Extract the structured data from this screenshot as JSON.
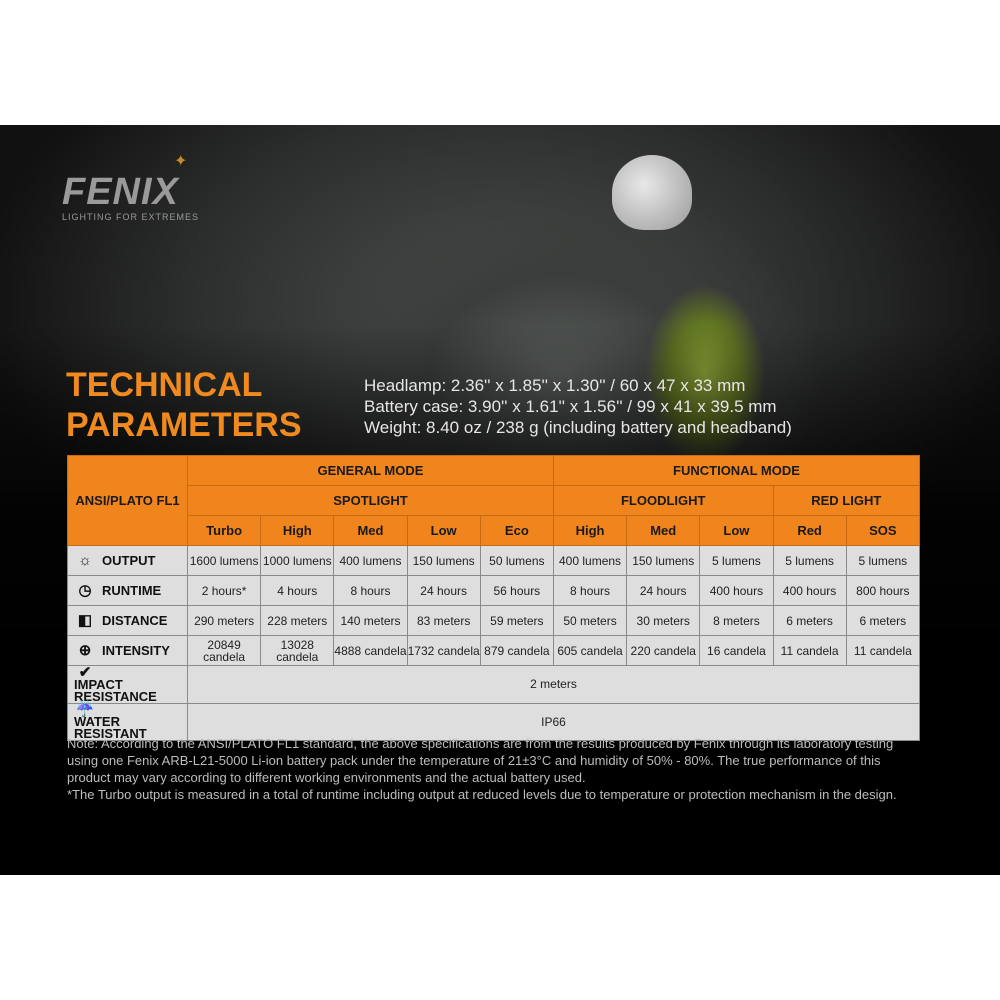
{
  "logo": {
    "brand": "FENIX",
    "tagline": "LIGHTING FOR EXTREMES"
  },
  "title": [
    "TECHNICAL",
    "PARAMETERS"
  ],
  "dimensions": [
    "Headlamp: 2.36'' x 1.85'' x 1.30'' / 60 x 47 x 33 mm",
    "Battery case: 3.90'' x 1.61'' x 1.56'' / 99 x 41 x 39.5 mm",
    "Weight: 8.40 oz / 238 g (including battery and headband)"
  ],
  "table": {
    "corner": "ANSI/PLATO FL1",
    "groups": [
      "GENERAL MODE",
      "FUNCTIONAL MODE"
    ],
    "subgroups": [
      "SPOTLIGHT",
      "FLOODLIGHT",
      "RED LIGHT"
    ],
    "modes": [
      "Turbo",
      "High",
      "Med",
      "Low",
      "Eco",
      "High",
      "Med",
      "Low",
      "Red",
      "SOS"
    ],
    "rows": [
      {
        "label": "OUTPUT",
        "icon": "output-rays-icon",
        "values": [
          "1600 lumens",
          "1000 lumens",
          "400 lumens",
          "150 lumens",
          "50 lumens",
          "400 lumens",
          "150 lumens",
          "5 lumens",
          "5 lumens",
          "5 lumens"
        ]
      },
      {
        "label": "RUNTIME",
        "icon": "clock-icon",
        "values": [
          "2 hours*",
          "4 hours",
          "8 hours",
          "24 hours",
          "56 hours",
          "8 hours",
          "24 hours",
          "400 hours",
          "400 hours",
          "800 hours"
        ]
      },
      {
        "label": "DISTANCE",
        "icon": "beam-distance-icon",
        "values": [
          "290 meters",
          "228 meters",
          "140 meters",
          "83 meters",
          "59 meters",
          "50 meters",
          "30 meters",
          "8 meters",
          "6 meters",
          "6 meters"
        ]
      },
      {
        "label": "INTENSITY",
        "icon": "target-icon",
        "values": [
          "20849 candela",
          "13028 candela",
          "4888 candela",
          "1732 candela",
          "879 candela",
          "605 candela",
          "220 candela",
          "16 candela",
          "11 candela",
          "11 candela"
        ]
      }
    ],
    "impact": {
      "label": "IMPACT RESISTANCE",
      "icon": "impact-icon",
      "value": "2 meters"
    },
    "water": {
      "label": "WATER RESISTANT",
      "icon": "water-icon",
      "value": "IP66"
    }
  },
  "note": "Note: According to the ANSI/PLATO FL1 standard, the above specifications are from the results produced by Fenix through its laboratory testing using one Fenix ARB-L21-5000 Li-ion battery pack under the temperature of 21±3°C and humidity of 50% - 80%. The true performance of this product may vary according to different working environments and the actual battery used.",
  "footnote": "*The Turbo output is measured in a total of runtime including output at reduced levels due to temperature or protection mechanism in the design.",
  "colors": {
    "accent": "#f0841d",
    "cell": "#dedede",
    "background": "#0b0b0b"
  }
}
